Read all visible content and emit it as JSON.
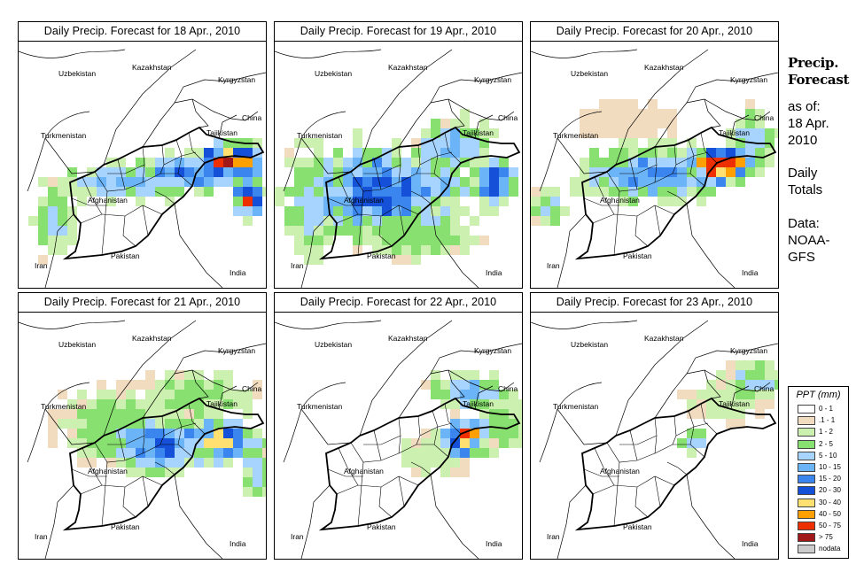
{
  "sidebar": {
    "title_line1": "Precip.",
    "title_line2": "Forecast",
    "asof_label": "as of:",
    "asof_date_line1": "18 Apr.",
    "asof_date_line2": "2010",
    "totals_line1": "Daily",
    "totals_line2": "Totals",
    "data_line1": "Data:",
    "data_line2": "NOAA-",
    "data_line3": "GFS"
  },
  "panels": [
    {
      "title": "Daily Precip. Forecast for  18 Apr., 2010"
    },
    {
      "title": "Daily Precip. Forecast for  19 Apr., 2010"
    },
    {
      "title": "Daily Precip. Forecast for  20 Apr., 2010"
    },
    {
      "title": "Daily Precip. Forecast for  21 Apr., 2010"
    },
    {
      "title": "Daily Precip. Forecast for  22 Apr., 2010"
    },
    {
      "title": "Daily Precip. Forecast for  23 Apr., 2010"
    }
  ],
  "map_labels": {
    "uzbekistan": "Uzbekistan",
    "kazakhstan": "Kazakhstan",
    "kyrgyzstan": "Kyrgyzstan",
    "china": "China",
    "turkmenistan": "Turkmenistan",
    "tajikistan": "Tajikistan",
    "afghanistan": "Afghanistan",
    "iran": "Iran",
    "pakistan": "Pakistan",
    "india": "India"
  },
  "legend": {
    "title": "PPT (mm)",
    "items": [
      {
        "label": "0 - 1",
        "color": "#ffffff"
      },
      {
        "label": ".1 - 1",
        "color": "#f2dcc0"
      },
      {
        "label": "1 - 2",
        "color": "#ccf0b0"
      },
      {
        "label": "2 - 5",
        "color": "#88e070"
      },
      {
        "label": "5 - 10",
        "color": "#a6d4ff"
      },
      {
        "label": "10 - 15",
        "color": "#6cb4f8"
      },
      {
        "label": "15 - 20",
        "color": "#3a86ee"
      },
      {
        "label": "20 - 30",
        "color": "#1450d8"
      },
      {
        "label": "30 - 40",
        "color": "#ffe070"
      },
      {
        "label": "40 - 50",
        "color": "#ffa000"
      },
      {
        "label": "50 - 75",
        "color": "#ee3000"
      },
      {
        "label": "> 75",
        "color": "#a01818"
      },
      {
        "label": "nodata",
        "color": "#cccccc"
      }
    ]
  }
}
